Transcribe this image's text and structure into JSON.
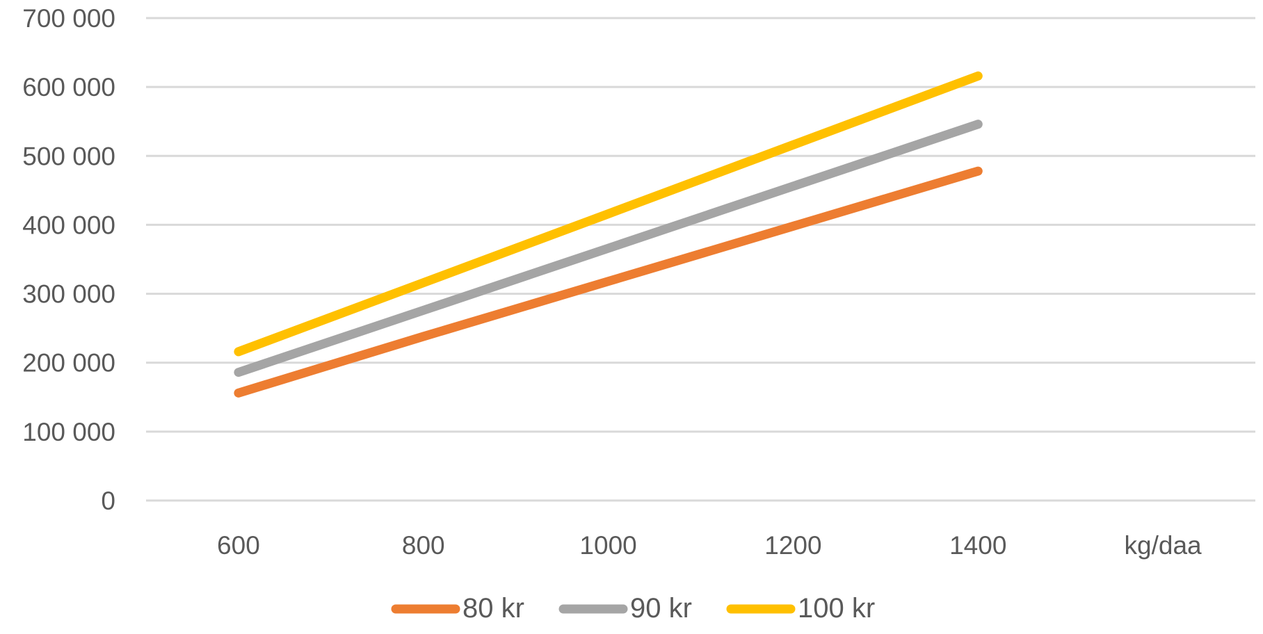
{
  "chart_data": {
    "type": "line",
    "title": "",
    "xlabel": "",
    "ylabel": "",
    "categories": [
      "600",
      "800",
      "1000",
      "1200",
      "1400",
      "kg/daa"
    ],
    "y_ticks": [
      "0",
      "100 000",
      "200 000",
      "300 000",
      "400 000",
      "500 000",
      "600 000",
      "700 000"
    ],
    "ylim": [
      0,
      700000
    ],
    "grid": true,
    "legend_position": "bottom",
    "series": [
      {
        "name": "80 kr",
        "color": "#ED7D31",
        "values": [
          156000,
          238000,
          318000,
          398000,
          478000,
          null
        ]
      },
      {
        "name": "90 kr",
        "color": "#A5A5A5",
        "values": [
          186000,
          276000,
          366000,
          456000,
          546000,
          null
        ]
      },
      {
        "name": "100 kr",
        "color": "#FFC000",
        "values": [
          216000,
          316000,
          416000,
          516000,
          616000,
          null
        ]
      }
    ]
  }
}
